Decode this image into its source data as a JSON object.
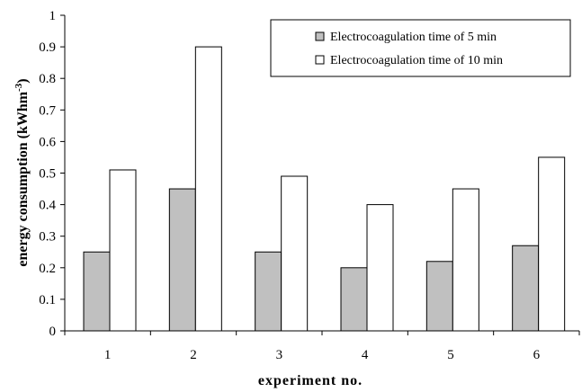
{
  "chart_data": {
    "type": "bar",
    "categories": [
      "1",
      "2",
      "3",
      "4",
      "5",
      "6"
    ],
    "series": [
      {
        "name": "Electrocoagulation time of 5 min",
        "values": [
          0.25,
          0.45,
          0.25,
          0.2,
          0.22,
          0.27
        ],
        "color": "#c0c0c0"
      },
      {
        "name": "Electrocoagulation time of 10 min",
        "values": [
          0.51,
          0.9,
          0.49,
          0.4,
          0.45,
          0.55
        ],
        "color": "#ffffff"
      }
    ],
    "title": "",
    "xlabel": "experiment no.",
    "ylabel_main": "energy consumption (kWhm",
    "ylabel_sup": "-3",
    "ylabel_close": ")",
    "ylim": [
      0,
      1
    ],
    "yticks": [
      "0",
      "0.1",
      "0.2",
      "0.3",
      "0.4",
      "0.5",
      "0.6",
      "0.7",
      "0.8",
      "0.9",
      "1"
    ],
    "grid": false,
    "legend_position": "top-right"
  }
}
